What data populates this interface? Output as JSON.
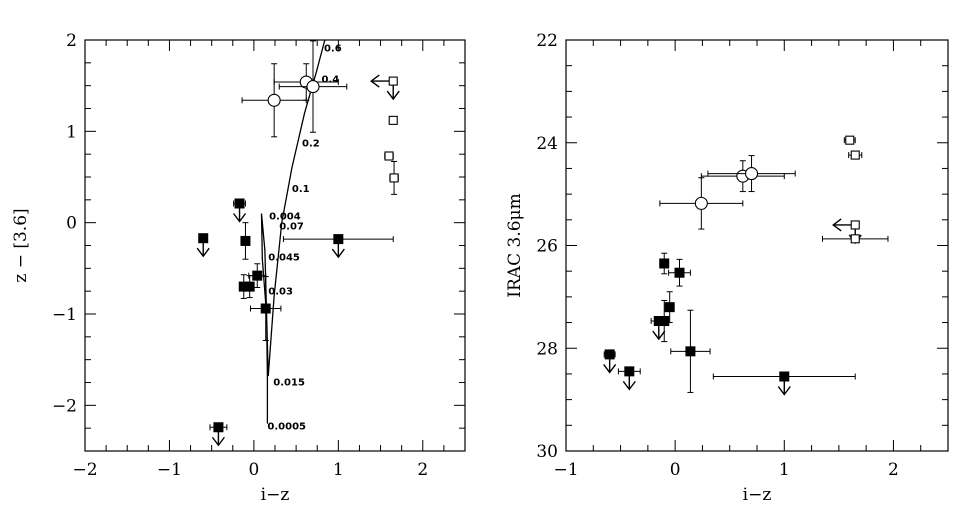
{
  "chart_data": [
    {
      "type": "scatter",
      "title": "",
      "xlabel": "i−z",
      "ylabel": "z − [3.6]",
      "xlim": [
        -2,
        2.5
      ],
      "ylim": [
        -2.5,
        2
      ],
      "xticks": [
        -2,
        -1,
        0,
        1,
        2
      ],
      "xtick_labels": [
        "−2",
        "−1",
        "0",
        "1",
        "2"
      ],
      "yticks": [
        -2,
        -1,
        0,
        1,
        2
      ],
      "ytick_labels": [
        "−2",
        "−1",
        "0",
        "1",
        "2"
      ],
      "grid": false,
      "series": [
        {
          "marker": "filled-square",
          "points": [
            {
              "x": -0.6,
              "y": -0.17,
              "xerr": 0.05,
              "yerr": 0.0,
              "upper_limit": true
            },
            {
              "x": -0.17,
              "y": 0.21,
              "xerr": 0.07,
              "yerr": 0.0,
              "upper_limit": true
            },
            {
              "x": -0.1,
              "y": -0.2,
              "xerr": 0.04,
              "yerr": 0.2
            },
            {
              "x": -0.12,
              "y": -0.7,
              "xerr": 0.04,
              "yerr": 0.13
            },
            {
              "x": -0.05,
              "y": -0.7,
              "xerr": 0.04,
              "yerr": 0.12
            },
            {
              "x": 0.04,
              "y": -0.58,
              "xerr": 0.1,
              "yerr": 0.13
            },
            {
              "x": 0.14,
              "y": -0.94,
              "xerr": 0.18,
              "yerr": 0.35
            },
            {
              "x": 1.0,
              "y": -0.18,
              "xerr": 0.65,
              "yerr": 0.0,
              "upper_limit": true
            },
            {
              "x": -0.42,
              "y": -2.24,
              "xerr": 0.1,
              "yerr": 0.0,
              "upper_limit": true
            }
          ]
        },
        {
          "marker": "open-circle",
          "points": [
            {
              "x": 0.24,
              "y": 1.34,
              "xerr": 0.38,
              "yerr": 0.4
            },
            {
              "x": 0.62,
              "y": 1.54,
              "xerr": 0.38,
              "yerr": 0.2
            },
            {
              "x": 0.7,
              "y": 1.49,
              "xerr": 0.4,
              "yerr": 0.5
            }
          ]
        },
        {
          "marker": "open-square",
          "points": [
            {
              "x": 1.65,
              "y": 1.55,
              "xerr": 0.0,
              "yerr": 0.0,
              "upper_limit": true,
              "left_arrow": true
            },
            {
              "x": 1.65,
              "y": 1.12,
              "xerr": 0.04,
              "yerr": 0.04
            },
            {
              "x": 1.6,
              "y": 0.73,
              "xerr": 0.05,
              "yerr": 0.04
            },
            {
              "x": 1.66,
              "y": 0.49,
              "xerr": 0.05,
              "yerr": 0.18
            }
          ]
        }
      ],
      "curve": {
        "x": [
          0.16,
          0.16,
          0.15,
          0.1,
          0.09,
          0.13,
          0.17,
          0.24,
          0.33,
          0.45,
          0.6,
          0.74,
          0.84
        ],
        "y": [
          -2.2,
          -1.7,
          -1.0,
          -0.4,
          0.1,
          -0.3,
          -1.68,
          -0.8,
          0.0,
          0.6,
          1.2,
          1.65,
          2.0
        ]
      },
      "annotations": [
        {
          "text": "0.6",
          "x": 0.83,
          "y": 1.92
        },
        {
          "text": "0.4",
          "x": 0.8,
          "y": 1.58
        },
        {
          "text": "0.2",
          "x": 0.57,
          "y": 0.88
        },
        {
          "text": "0.1",
          "x": 0.45,
          "y": 0.38
        },
        {
          "text": "0.004",
          "x": 0.18,
          "y": 0.08
        },
        {
          "text": "0.07",
          "x": 0.3,
          "y": -0.03
        },
        {
          "text": "0.045",
          "x": 0.17,
          "y": -0.37
        },
        {
          "text": "0.03",
          "x": 0.17,
          "y": -0.74
        },
        {
          "text": "0.015",
          "x": 0.23,
          "y": -1.74
        },
        {
          "text": "0.0005",
          "x": 0.16,
          "y": -2.22
        }
      ]
    },
    {
      "type": "scatter",
      "title": "",
      "xlabel": "i−z",
      "ylabel": "IRAC 3.6μm",
      "xlim": [
        -1,
        2.5
      ],
      "ylim": [
        30,
        22
      ],
      "xticks": [
        -1,
        0,
        1,
        2
      ],
      "xtick_labels": [
        "−1",
        "0",
        "1",
        "2"
      ],
      "yticks": [
        22,
        24,
        26,
        28,
        30
      ],
      "ytick_labels": [
        "22",
        "24",
        "26",
        "28",
        "30"
      ],
      "grid": false,
      "series": [
        {
          "marker": "filled-square",
          "points": [
            {
              "x": -0.6,
              "y": 28.12,
              "xerr": 0.05,
              "yerr": 0.0,
              "upper_limit": true
            },
            {
              "x": -0.42,
              "y": 28.45,
              "xerr": 0.1,
              "yerr": 0.0,
              "upper_limit": true
            },
            {
              "x": -0.15,
              "y": 27.47,
              "xerr": 0.07,
              "yerr": 0.0,
              "upper_limit": true
            },
            {
              "x": -0.1,
              "y": 27.47,
              "xerr": 0.04,
              "yerr": 0.4
            },
            {
              "x": -0.1,
              "y": 26.35,
              "xerr": 0.03,
              "yerr": 0.2
            },
            {
              "x": -0.05,
              "y": 27.2,
              "xerr": 0.04,
              "yerr": 0.3
            },
            {
              "x": 0.04,
              "y": 26.53,
              "xerr": 0.1,
              "yerr": 0.26
            },
            {
              "x": 0.14,
              "y": 28.06,
              "xerr": 0.18,
              "yerr": 0.8
            },
            {
              "x": 1.0,
              "y": 28.55,
              "xerr": 0.65,
              "yerr": 0.0,
              "upper_limit": true
            }
          ]
        },
        {
          "marker": "open-circle",
          "points": [
            {
              "x": 0.24,
              "y": 25.18,
              "xerr": 0.38,
              "yerr": 0.5
            },
            {
              "x": 0.62,
              "y": 24.65,
              "xerr": 0.38,
              "yerr": 0.3
            },
            {
              "x": 0.7,
              "y": 24.6,
              "xerr": 0.4,
              "yerr": 0.35
            }
          ]
        },
        {
          "marker": "open-square",
          "points": [
            {
              "x": 1.6,
              "y": 23.95,
              "xerr": 0.05,
              "yerr": 0.05
            },
            {
              "x": 1.65,
              "y": 24.24,
              "xerr": 0.06,
              "yerr": 0.05
            },
            {
              "x": 1.65,
              "y": 25.6,
              "xerr": 0.0,
              "yerr": 0.0,
              "upper_limit": true,
              "left_arrow": true
            },
            {
              "x": 1.65,
              "y": 25.87,
              "xerr": 0.3,
              "yerr": 0.0
            }
          ]
        }
      ]
    }
  ]
}
